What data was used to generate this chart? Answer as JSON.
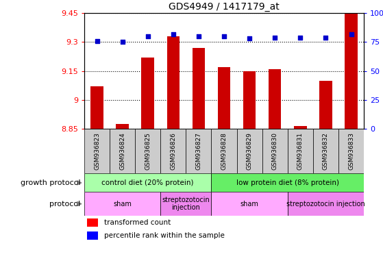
{
  "title": "GDS4949 / 1417179_at",
  "samples": [
    "GSM936823",
    "GSM936824",
    "GSM936825",
    "GSM936826",
    "GSM936827",
    "GSM936828",
    "GSM936829",
    "GSM936830",
    "GSM936831",
    "GSM936832",
    "GSM936833"
  ],
  "transformed_count": [
    9.07,
    8.875,
    9.22,
    9.33,
    9.27,
    9.17,
    9.15,
    9.16,
    8.865,
    9.1,
    9.45
  ],
  "percentile_rank": [
    76,
    75,
    80,
    82,
    80,
    80,
    78,
    79,
    79,
    79,
    82
  ],
  "ylim_left": [
    8.85,
    9.45
  ],
  "ylim_right": [
    0,
    100
  ],
  "yticks_left": [
    8.85,
    9.0,
    9.15,
    9.3,
    9.45
  ],
  "ytick_labels_left": [
    "8.85",
    "9",
    "9.15",
    "9.3",
    "9.45"
  ],
  "yticks_right": [
    0,
    25,
    50,
    75,
    100
  ],
  "ytick_labels_right": [
    "0",
    "25",
    "50",
    "75",
    "100%"
  ],
  "bar_color": "#cc0000",
  "dot_color": "#0000cc",
  "bar_bottom": 8.85,
  "growth_protocol_groups": [
    {
      "label": "control diet (20% protein)",
      "start": 0,
      "end": 4,
      "color": "#aaffaa"
    },
    {
      "label": "low protein diet (8% protein)",
      "start": 5,
      "end": 10,
      "color": "#66ee66"
    }
  ],
  "protocol_groups": [
    {
      "label": "sham",
      "start": 0,
      "end": 2,
      "color": "#ffaaff"
    },
    {
      "label": "streptozotocin\ninjection",
      "start": 3,
      "end": 4,
      "color": "#ee88ee"
    },
    {
      "label": "sham",
      "start": 5,
      "end": 7,
      "color": "#ffaaff"
    },
    {
      "label": "streptozotocin injection",
      "start": 8,
      "end": 10,
      "color": "#ee88ee"
    }
  ],
  "sample_box_color": "#cccccc",
  "left_label_growth": "growth protocol",
  "left_label_protocol": "protocol",
  "legend_red": "transformed count",
  "legend_blue": "percentile rank within the sample"
}
